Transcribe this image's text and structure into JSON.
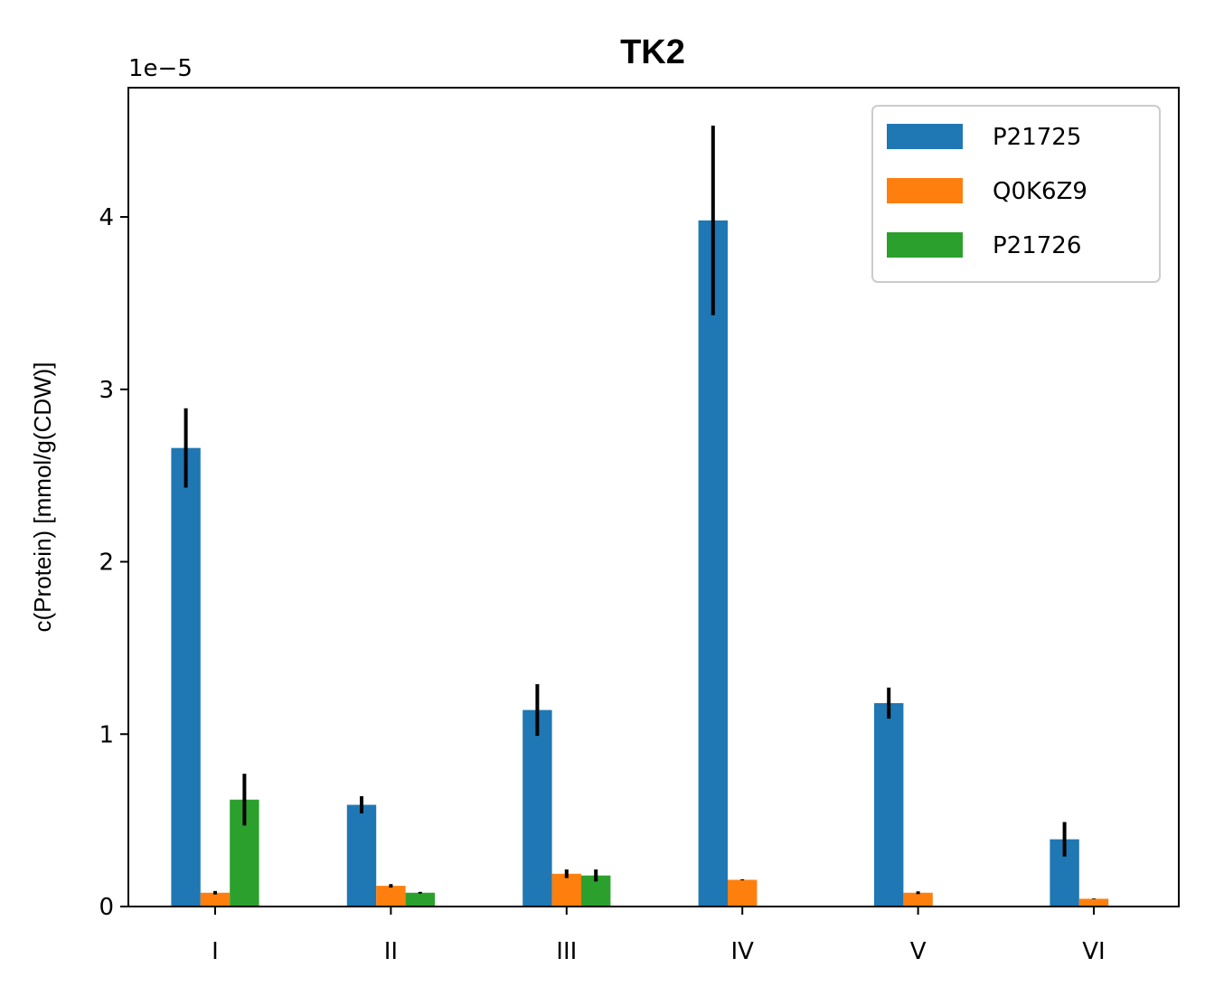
{
  "chart_data": {
    "type": "bar",
    "title": "TK2",
    "xlabel": "",
    "ylabel": "c(Protein) [mmol/g(CDW)]",
    "y_offset_label": "1e−5",
    "ylim": [
      0,
      4.75
    ],
    "yticks": [
      0,
      1,
      2,
      3,
      4
    ],
    "categories": [
      "I",
      "II",
      "III",
      "IV",
      "V",
      "VI"
    ],
    "legend_position": "top-right",
    "grid": false,
    "series": [
      {
        "name": "P21725",
        "color": "#1f77b4",
        "values": [
          2.66,
          0.59,
          1.14,
          3.98,
          1.18,
          0.39
        ],
        "errors": [
          0.23,
          0.05,
          0.15,
          0.55,
          0.09,
          0.1
        ]
      },
      {
        "name": "Q0K6Z9",
        "color": "#ff7f0e",
        "values": [
          0.08,
          0.12,
          0.19,
          0.155,
          0.08,
          0.045
        ],
        "errors": [
          0.01,
          0.01,
          0.025,
          0.003,
          0.008,
          0.002
        ]
      },
      {
        "name": "P21726",
        "color": "#2ca02c",
        "values": [
          0.62,
          0.08,
          0.18,
          0,
          0,
          0
        ],
        "errors": [
          0.15,
          0.005,
          0.035,
          0,
          0,
          0
        ]
      }
    ]
  }
}
